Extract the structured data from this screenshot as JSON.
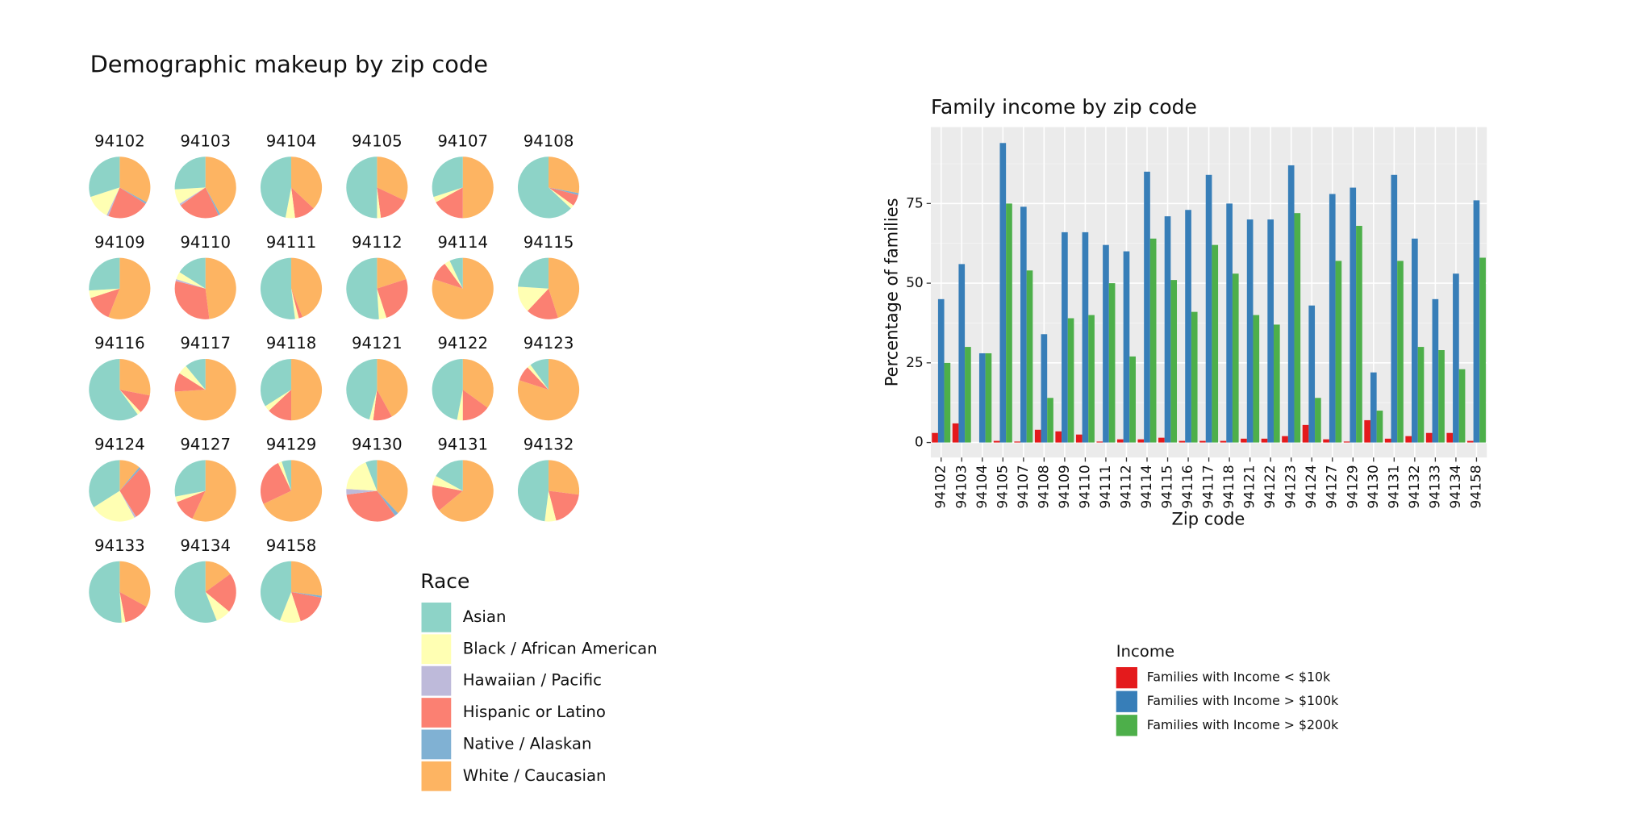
{
  "chart_data": [
    {
      "type": "pie",
      "title": "Demographic makeup by zip code",
      "legend_title": "Race",
      "categories": [
        "Asian",
        "Black / African American",
        "Hawaiian / Pacific",
        "Hispanic or Latino",
        "Native / Alaskan",
        "White / Caucasian"
      ],
      "colors": [
        "#8dd3c7",
        "#ffffb3",
        "#bebada",
        "#fb8072",
        "#80b1d3",
        "#fdb462"
      ],
      "facets": [
        {
          "name": "94102",
          "values": [
            30,
            13,
            1,
            22,
            1,
            33
          ]
        },
        {
          "name": "94103",
          "values": [
            26,
            8,
            1,
            22,
            1,
            42
          ]
        },
        {
          "name": "94104",
          "values": [
            47,
            5,
            0,
            11,
            0,
            37
          ]
        },
        {
          "name": "94105",
          "values": [
            50,
            2,
            0,
            16,
            0,
            32
          ]
        },
        {
          "name": "94107",
          "values": [
            30,
            3,
            0,
            17,
            0,
            50
          ]
        },
        {
          "name": "94108",
          "values": [
            63,
            2,
            0,
            6,
            1,
            28
          ]
        },
        {
          "name": "94109",
          "values": [
            26,
            4,
            0,
            14,
            0,
            56
          ]
        },
        {
          "name": "94110",
          "values": [
            16,
            4,
            1,
            31,
            0,
            48
          ]
        },
        {
          "name": "94111",
          "values": [
            52,
            2,
            0,
            2,
            0,
            44
          ]
        },
        {
          "name": "94112",
          "values": [
            51,
            4,
            0,
            25,
            0,
            20
          ]
        },
        {
          "name": "94114",
          "values": [
            7,
            3,
            0,
            10,
            0,
            80
          ]
        },
        {
          "name": "94115",
          "values": [
            24,
            14,
            0,
            17,
            0,
            45
          ]
        },
        {
          "name": "94116",
          "values": [
            60,
            2,
            0,
            10,
            0,
            28
          ]
        },
        {
          "name": "94117",
          "values": [
            11,
            5,
            0,
            10,
            0,
            74
          ]
        },
        {
          "name": "94118",
          "values": [
            34,
            3,
            0,
            13,
            0,
            50
          ]
        },
        {
          "name": "94121",
          "values": [
            46,
            2,
            0,
            10,
            0,
            42
          ]
        },
        {
          "name": "94122",
          "values": [
            47,
            3,
            0,
            15,
            0,
            35
          ]
        },
        {
          "name": "94123",
          "values": [
            10,
            2,
            0,
            8,
            0,
            80
          ]
        },
        {
          "name": "94124",
          "values": [
            34,
            24,
            1,
            29,
            1,
            11
          ]
        },
        {
          "name": "94127",
          "values": [
            28,
            3,
            0,
            12,
            0,
            57
          ]
        },
        {
          "name": "94129",
          "values": [
            5,
            2,
            0,
            25,
            0,
            68
          ]
        },
        {
          "name": "94130",
          "values": [
            6,
            18,
            3,
            33,
            2,
            38
          ]
        },
        {
          "name": "94131",
          "values": [
            17,
            5,
            0,
            14,
            0,
            64
          ]
        },
        {
          "name": "94132",
          "values": [
            48,
            6,
            0,
            19,
            0,
            27
          ]
        },
        {
          "name": "94133",
          "values": [
            51,
            2,
            0,
            14,
            0,
            33
          ]
        },
        {
          "name": "94134",
          "values": [
            56,
            8,
            0,
            21,
            0,
            15
          ]
        },
        {
          "name": "94158",
          "values": [
            44,
            11,
            0,
            17,
            1,
            27
          ]
        }
      ]
    },
    {
      "type": "bar",
      "title": "Family income by zip code",
      "x_label": "Zip code",
      "y_label": "Percentage of families",
      "legend_title": "Income",
      "grid": true,
      "categories": [
        "94102",
        "94103",
        "94104",
        "94105",
        "94107",
        "94108",
        "94109",
        "94110",
        "94111",
        "94112",
        "94114",
        "94115",
        "94116",
        "94117",
        "94118",
        "94121",
        "94122",
        "94123",
        "94124",
        "94127",
        "94129",
        "94130",
        "94131",
        "94132",
        "94133",
        "94134",
        "94158"
      ],
      "series": [
        {
          "name": "Families with Income < $10k",
          "color": "#e41a1c",
          "values": [
            3,
            6,
            0,
            0.5,
            0.3,
            4,
            3.5,
            2.5,
            0.3,
            1,
            1,
            1.5,
            0.5,
            0.5,
            0.5,
            1.2,
            1.2,
            2,
            5.5,
            1,
            0.3,
            7,
            1.2,
            2,
            3,
            3,
            0.5
          ]
        },
        {
          "name": "Families with Income > $100k",
          "color": "#377eb8",
          "values": [
            45,
            56,
            28,
            94,
            74,
            34,
            66,
            66,
            62,
            60,
            85,
            71,
            73,
            84,
            75,
            70,
            70,
            87,
            43,
            78,
            80,
            22,
            84,
            64,
            45,
            53,
            76
          ]
        },
        {
          "name": "Families with Income > $200k",
          "color": "#4daf4a",
          "values": [
            25,
            30,
            28,
            75,
            54,
            14,
            39,
            40,
            50,
            27,
            64,
            51,
            41,
            62,
            53,
            40,
            37,
            72,
            14,
            57,
            68,
            10,
            57,
            30,
            29,
            23,
            58
          ]
        }
      ],
      "ylim": [
        -4.7,
        99
      ],
      "yticks": [
        0,
        25,
        50,
        75
      ]
    }
  ]
}
